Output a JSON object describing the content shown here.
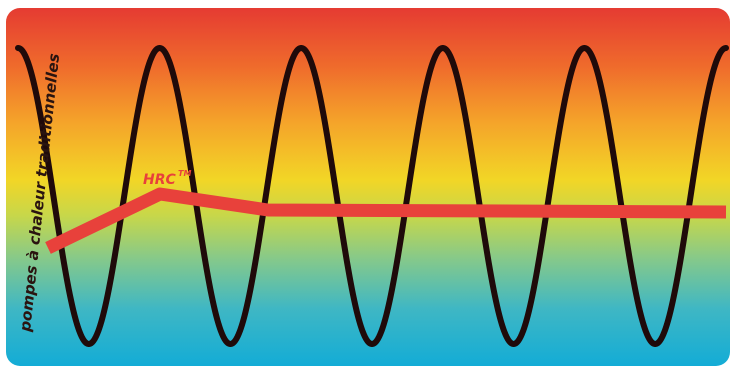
{
  "labels": {
    "traditional": "pompes à chaleur traditionnelles",
    "hrc": "HRC",
    "hrc_mark": "TM"
  },
  "colors": {
    "gradient_top": "#e53b32",
    "gradient_mid": "#f2d626",
    "gradient_bottom": "#13acd6",
    "sine_wave": "#1f0a0a",
    "hrc_line": "#e8413b"
  }
}
